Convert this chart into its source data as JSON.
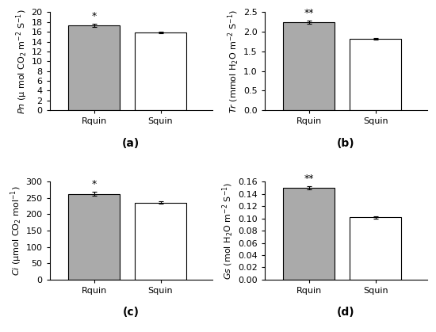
{
  "panels": [
    {
      "label": "(a)",
      "ylabel": "$\\it{Pn}$ (μ mol CO$_2$ m$^{-2}$ S$^{-1}$)",
      "categories": [
        "Rquin",
        "Squin"
      ],
      "values": [
        17.3,
        15.9
      ],
      "errors": [
        0.35,
        0.12
      ],
      "ylim": [
        0,
        20
      ],
      "yticks": [
        0,
        2,
        4,
        6,
        8,
        10,
        12,
        14,
        16,
        18,
        20
      ],
      "significance": "*",
      "sig_index": 0
    },
    {
      "label": "(b)",
      "ylabel": "$\\it{Tr}$ (mmol H$_2$O m$^{-2}$ S$^{-1}$)",
      "categories": [
        "Rquin",
        "Squin"
      ],
      "values": [
        2.25,
        1.82
      ],
      "errors": [
        0.04,
        0.015
      ],
      "ylim": [
        0.0,
        2.5
      ],
      "yticks": [
        0.0,
        0.5,
        1.0,
        1.5,
        2.0,
        2.5
      ],
      "significance": "**",
      "sig_index": 0
    },
    {
      "label": "(c)",
      "ylabel": "$\\it{Ci}$ (μmol CO$_2$ mol$^{-1}$)",
      "categories": [
        "Rquin",
        "Squin"
      ],
      "values": [
        263,
        236
      ],
      "errors": [
        6,
        4
      ],
      "ylim": [
        0,
        300
      ],
      "yticks": [
        0,
        50,
        100,
        150,
        200,
        250,
        300
      ],
      "significance": "*",
      "sig_index": 0
    },
    {
      "label": "(d)",
      "ylabel": "$\\it{Gs}$ (mol H$_2$O m$^{-2}$ S$^{-1}$)",
      "categories": [
        "Rquin",
        "Squin"
      ],
      "values": [
        0.15,
        0.102
      ],
      "errors": [
        0.003,
        0.002
      ],
      "ylim": [
        0.0,
        0.16
      ],
      "yticks": [
        0.0,
        0.02,
        0.04,
        0.06,
        0.08,
        0.1,
        0.12,
        0.14,
        0.16
      ],
      "significance": "**",
      "sig_index": 0
    }
  ],
  "bar_colors": [
    "#aaaaaa",
    "#ffffff"
  ],
  "bar_edgecolor": "#000000",
  "errorbar_color": "#000000",
  "bar_width": 0.35,
  "fontsize_label": 8,
  "fontsize_tick": 8,
  "fontsize_sig": 9,
  "fontsize_panel_label": 10,
  "background_color": "#ffffff"
}
